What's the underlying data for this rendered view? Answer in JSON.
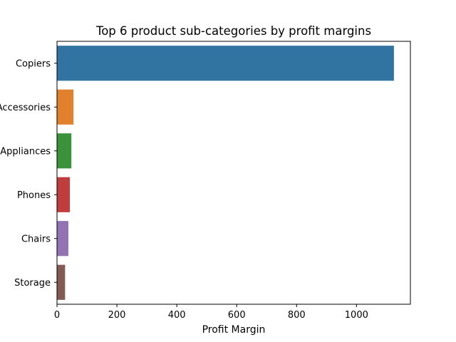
{
  "chart_data": {
    "type": "bar",
    "orientation": "horizontal",
    "title": "Top 6 product sub-categories by profit margins",
    "xlabel": "Profit Margin",
    "ylabel": "",
    "categories": [
      "Copiers",
      "Accessories",
      "Appliances",
      "Phones",
      "Chairs",
      "Storage"
    ],
    "values": [
      1125,
      55,
      48,
      43,
      38,
      27
    ],
    "colors": [
      "#3274a1",
      "#e1812c",
      "#3a923a",
      "#c03d3e",
      "#9372b2",
      "#845b53"
    ],
    "xlim": [
      0,
      1180
    ],
    "xticks": [
      0,
      200,
      400,
      600,
      800,
      1000
    ],
    "xtick_labels": [
      "0",
      "200",
      "400",
      "600",
      "800",
      "1000"
    ],
    "grid": false,
    "legend": "none"
  }
}
